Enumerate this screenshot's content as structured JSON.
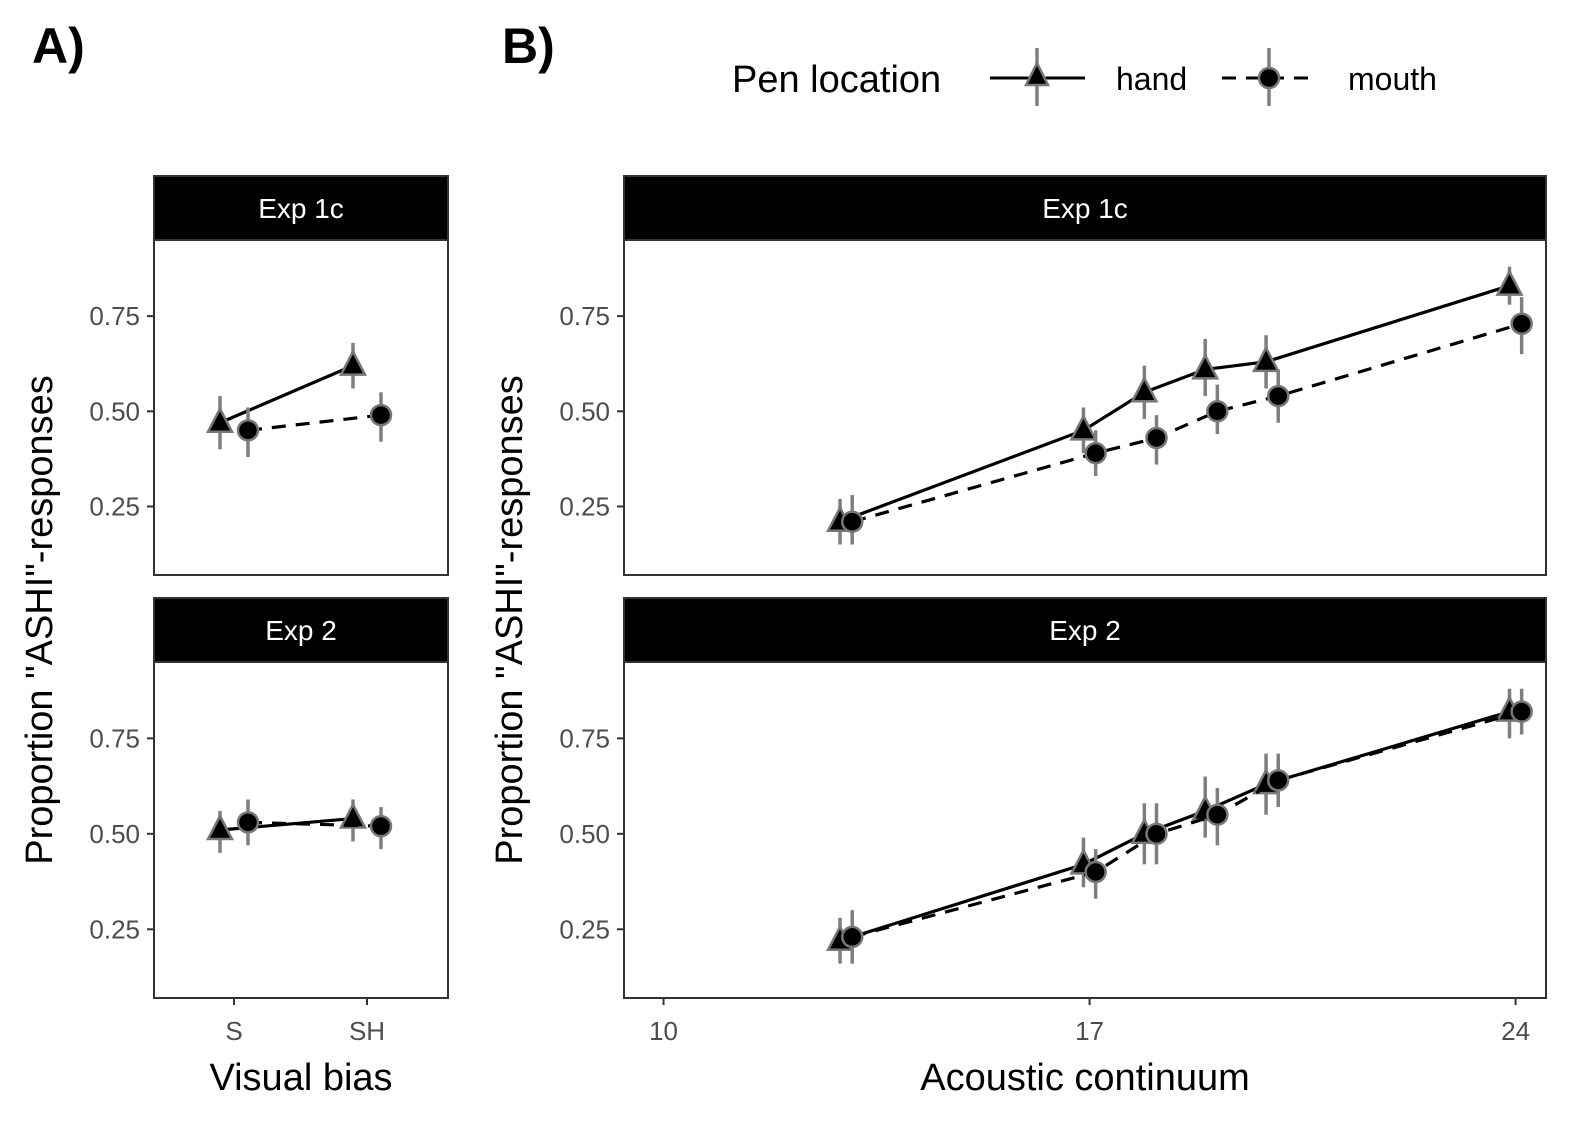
{
  "panel_labels": {
    "a": "A)",
    "b": "B)"
  },
  "legend": {
    "title": "Pen location",
    "items": [
      {
        "label": "hand",
        "shape": "triangle",
        "line": "solid"
      },
      {
        "label": "mouth",
        "shape": "circle",
        "line": "dashed"
      }
    ]
  },
  "colors": {
    "mark": "#000000",
    "error_bar": "#7f7f7f",
    "strip_bg": "#000000",
    "strip_text": "#ffffff",
    "panel_border": "#333333"
  },
  "chart_data": [
    {
      "id": "A",
      "type": "line",
      "x_type": "categorical",
      "xlabel": "Visual bias",
      "ylabel": "",
      "categories": [
        "S",
        "SH"
      ],
      "ylim": [
        0.07,
        0.95
      ],
      "yticks": [
        0.25,
        0.5,
        0.75
      ],
      "ytick_labels": [
        "0.25",
        "0.50",
        "0.75"
      ],
      "facets": [
        {
          "strip": "Exp 1c",
          "series": [
            {
              "name": "hand",
              "points": [
                {
                  "x": "S",
                  "y": 0.47,
                  "lo": 0.4,
                  "hi": 0.54
                },
                {
                  "x": "SH",
                  "y": 0.62,
                  "lo": 0.56,
                  "hi": 0.68
                }
              ]
            },
            {
              "name": "mouth",
              "points": [
                {
                  "x": "S",
                  "y": 0.45,
                  "lo": 0.38,
                  "hi": 0.51
                },
                {
                  "x": "SH",
                  "y": 0.49,
                  "lo": 0.42,
                  "hi": 0.55
                }
              ]
            }
          ]
        },
        {
          "strip": "Exp 2",
          "series": [
            {
              "name": "hand",
              "points": [
                {
                  "x": "S",
                  "y": 0.51,
                  "lo": 0.45,
                  "hi": 0.56
                },
                {
                  "x": "SH",
                  "y": 0.54,
                  "lo": 0.48,
                  "hi": 0.59
                }
              ]
            },
            {
              "name": "mouth",
              "points": [
                {
                  "x": "S",
                  "y": 0.53,
                  "lo": 0.47,
                  "hi": 0.59
                },
                {
                  "x": "SH",
                  "y": 0.52,
                  "lo": 0.46,
                  "hi": 0.57
                }
              ]
            }
          ]
        }
      ]
    },
    {
      "id": "B",
      "type": "line",
      "x_type": "numeric",
      "xlabel": "Acoustic continuum",
      "ylabel": "Proportion \"ASHI\"-responses",
      "xlim": [
        9.35,
        24.5
      ],
      "xticks": [
        10,
        17,
        24
      ],
      "xtick_labels": [
        "10",
        "17",
        "24"
      ],
      "ylim": [
        0.07,
        0.95
      ],
      "yticks": [
        0.25,
        0.5,
        0.75
      ],
      "ytick_labels": [
        "0.25",
        "0.50",
        "0.75"
      ],
      "facets": [
        {
          "strip": "Exp 1c",
          "series": [
            {
              "name": "hand",
              "points": [
                {
                  "x": 12.9,
                  "y": 0.21,
                  "lo": 0.15,
                  "hi": 0.27
                },
                {
                  "x": 16.9,
                  "y": 0.45,
                  "lo": 0.39,
                  "hi": 0.51
                },
                {
                  "x": 17.9,
                  "y": 0.55,
                  "lo": 0.48,
                  "hi": 0.62
                },
                {
                  "x": 18.9,
                  "y": 0.61,
                  "lo": 0.54,
                  "hi": 0.69
                },
                {
                  "x": 19.9,
                  "y": 0.63,
                  "lo": 0.56,
                  "hi": 0.7
                },
                {
                  "x": 23.9,
                  "y": 0.83,
                  "lo": 0.78,
                  "hi": 0.88
                }
              ]
            },
            {
              "name": "mouth",
              "points": [
                {
                  "x": 13.1,
                  "y": 0.21,
                  "lo": 0.15,
                  "hi": 0.28
                },
                {
                  "x": 17.1,
                  "y": 0.39,
                  "lo": 0.33,
                  "hi": 0.45
                },
                {
                  "x": 18.1,
                  "y": 0.43,
                  "lo": 0.36,
                  "hi": 0.49
                },
                {
                  "x": 19.1,
                  "y": 0.5,
                  "lo": 0.44,
                  "hi": 0.57
                },
                {
                  "x": 20.1,
                  "y": 0.54,
                  "lo": 0.47,
                  "hi": 0.61
                },
                {
                  "x": 24.1,
                  "y": 0.73,
                  "lo": 0.65,
                  "hi": 0.8
                }
              ]
            }
          ]
        },
        {
          "strip": "Exp 2",
          "series": [
            {
              "name": "hand",
              "points": [
                {
                  "x": 12.9,
                  "y": 0.22,
                  "lo": 0.16,
                  "hi": 0.28
                },
                {
                  "x": 16.9,
                  "y": 0.42,
                  "lo": 0.36,
                  "hi": 0.49
                },
                {
                  "x": 17.9,
                  "y": 0.5,
                  "lo": 0.42,
                  "hi": 0.58
                },
                {
                  "x": 18.9,
                  "y": 0.56,
                  "lo": 0.49,
                  "hi": 0.65
                },
                {
                  "x": 19.9,
                  "y": 0.63,
                  "lo": 0.55,
                  "hi": 0.71
                },
                {
                  "x": 23.9,
                  "y": 0.82,
                  "lo": 0.75,
                  "hi": 0.88
                }
              ]
            },
            {
              "name": "mouth",
              "points": [
                {
                  "x": 13.1,
                  "y": 0.23,
                  "lo": 0.16,
                  "hi": 0.3
                },
                {
                  "x": 17.1,
                  "y": 0.4,
                  "lo": 0.33,
                  "hi": 0.46
                },
                {
                  "x": 18.1,
                  "y": 0.5,
                  "lo": 0.42,
                  "hi": 0.58
                },
                {
                  "x": 19.1,
                  "y": 0.55,
                  "lo": 0.47,
                  "hi": 0.62
                },
                {
                  "x": 20.1,
                  "y": 0.64,
                  "lo": 0.57,
                  "hi": 0.71
                },
                {
                  "x": 24.1,
                  "y": 0.82,
                  "lo": 0.76,
                  "hi": 0.88
                }
              ]
            }
          ]
        }
      ]
    }
  ]
}
